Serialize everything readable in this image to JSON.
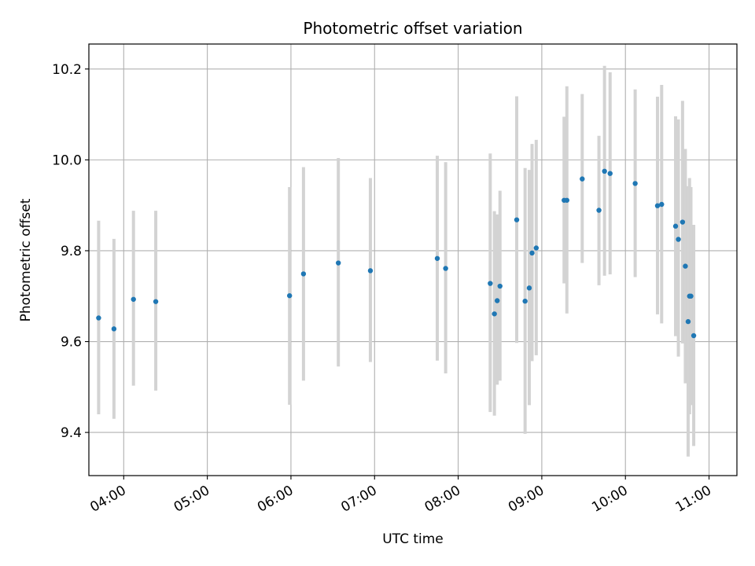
{
  "chart_data": {
    "type": "scatter",
    "title": "Photometric offset variation",
    "xlabel": "UTC time",
    "ylabel": "Photometric offset",
    "x_ticks": [
      "04:00",
      "05:00",
      "06:00",
      "07:00",
      "08:00",
      "09:00",
      "10:00",
      "11:00"
    ],
    "y_ticks": [
      "9.4",
      "9.6",
      "9.8",
      "10.0",
      "10.2"
    ],
    "xlim": [
      "03:35",
      "11:20"
    ],
    "ylim": [
      9.305,
      10.255
    ],
    "grid": true,
    "colors": {
      "point": "#1f77b4",
      "errorbar": "#d3d3d3",
      "grid": "#b0b0b0"
    },
    "points": [
      {
        "t": "03:42",
        "y": 9.652,
        "lo": 9.44,
        "hi": 9.866
      },
      {
        "t": "03:53",
        "y": 9.628,
        "lo": 9.43,
        "hi": 9.826
      },
      {
        "t": "04:07",
        "y": 9.693,
        "lo": 9.503,
        "hi": 9.888
      },
      {
        "t": "04:23",
        "y": 9.688,
        "lo": 9.492,
        "hi": 9.888
      },
      {
        "t": "05:59",
        "y": 9.701,
        "lo": 9.461,
        "hi": 9.94
      },
      {
        "t": "06:09",
        "y": 9.749,
        "lo": 9.514,
        "hi": 9.984
      },
      {
        "t": "06:34",
        "y": 9.773,
        "lo": 9.545,
        "hi": 10.004
      },
      {
        "t": "06:57",
        "y": 9.756,
        "lo": 9.555,
        "hi": 9.96
      },
      {
        "t": "07:45",
        "y": 9.783,
        "lo": 9.558,
        "hi": 10.009
      },
      {
        "t": "07:51",
        "y": 9.761,
        "lo": 9.53,
        "hi": 9.995
      },
      {
        "t": "08:23",
        "y": 9.728,
        "lo": 9.445,
        "hi": 10.014
      },
      {
        "t": "08:26",
        "y": 9.661,
        "lo": 9.437,
        "hi": 9.887
      },
      {
        "t": "08:28",
        "y": 9.69,
        "lo": 9.505,
        "hi": 9.88
      },
      {
        "t": "08:30",
        "y": 9.722,
        "lo": 9.514,
        "hi": 9.932
      },
      {
        "t": "08:42",
        "y": 9.868,
        "lo": 9.597,
        "hi": 10.14
      },
      {
        "t": "08:48",
        "y": 9.689,
        "lo": 9.397,
        "hi": 9.982
      },
      {
        "t": "08:51",
        "y": 9.718,
        "lo": 9.46,
        "hi": 9.978
      },
      {
        "t": "08:53",
        "y": 9.795,
        "lo": 9.557,
        "hi": 10.035
      },
      {
        "t": "08:56",
        "y": 9.806,
        "lo": 9.57,
        "hi": 10.044
      },
      {
        "t": "09:16",
        "y": 9.911,
        "lo": 9.728,
        "hi": 10.095
      },
      {
        "t": "09:18",
        "y": 9.911,
        "lo": 9.662,
        "hi": 10.162
      },
      {
        "t": "09:29",
        "y": 9.958,
        "lo": 9.773,
        "hi": 10.145
      },
      {
        "t": "09:41",
        "y": 9.889,
        "lo": 9.724,
        "hi": 10.053
      },
      {
        "t": "09:45",
        "y": 9.975,
        "lo": 9.745,
        "hi": 10.207
      },
      {
        "t": "09:49",
        "y": 9.97,
        "lo": 9.748,
        "hi": 10.193
      },
      {
        "t": "10:07",
        "y": 9.948,
        "lo": 9.742,
        "hi": 10.155
      },
      {
        "t": "10:23",
        "y": 9.899,
        "lo": 9.66,
        "hi": 10.139
      },
      {
        "t": "10:26",
        "y": 9.902,
        "lo": 9.64,
        "hi": 10.165
      },
      {
        "t": "10:36",
        "y": 9.854,
        "lo": 9.612,
        "hi": 10.096
      },
      {
        "t": "10:38",
        "y": 9.825,
        "lo": 9.567,
        "hi": 10.089
      },
      {
        "t": "10:41",
        "y": 9.863,
        "lo": 9.596,
        "hi": 10.13
      },
      {
        "t": "10:43",
        "y": 9.766,
        "lo": 9.508,
        "hi": 10.024
      },
      {
        "t": "10:45",
        "y": 9.644,
        "lo": 9.347,
        "hi": 9.942
      },
      {
        "t": "10:46",
        "y": 9.7,
        "lo": 9.44,
        "hi": 9.96
      },
      {
        "t": "10:47",
        "y": 9.7,
        "lo": 9.46,
        "hi": 9.94
      },
      {
        "t": "10:49",
        "y": 9.613,
        "lo": 9.37,
        "hi": 9.857
      }
    ]
  }
}
